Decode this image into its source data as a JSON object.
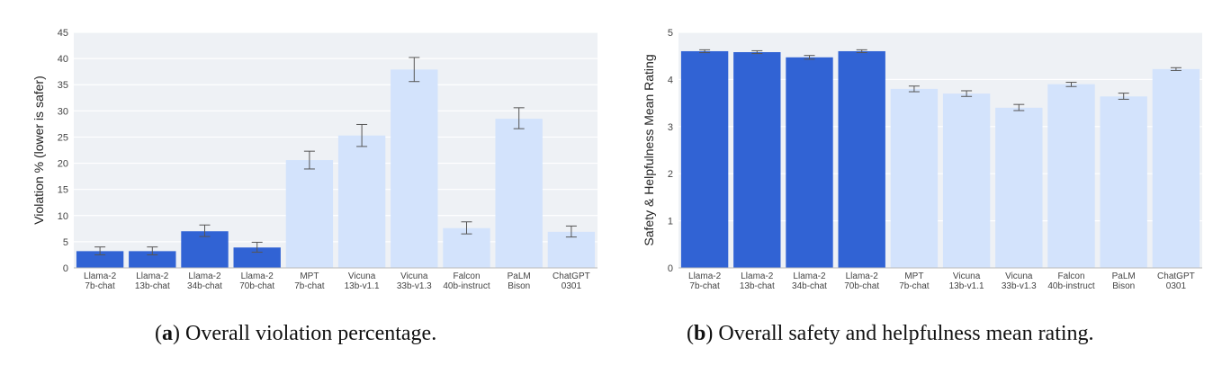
{
  "chart_data": [
    {
      "type": "bar",
      "categories": [
        "Llama-2\n7b-chat",
        "Llama-2\n13b-chat",
        "Llama-2\n34b-chat",
        "Llama-2\n70b-chat",
        "MPT\n7b-chat",
        "Vicuna\n13b-v1.1",
        "Vicuna\n33b-v1.3",
        "Falcon\n40b-instruct",
        "PaLM\nBison",
        "ChatGPT\n0301"
      ],
      "values": [
        3.2,
        3.2,
        7.0,
        3.9,
        20.6,
        25.3,
        37.9,
        7.6,
        28.5,
        6.9
      ],
      "error_low": [
        2.5,
        2.5,
        6.0,
        3.0,
        18.9,
        23.2,
        35.6,
        6.5,
        26.6,
        5.9
      ],
      "error_high": [
        4.0,
        4.0,
        8.2,
        4.9,
        22.3,
        27.4,
        40.2,
        8.8,
        30.6,
        8.0
      ],
      "highlight_count": 4,
      "xlabel": "",
      "ylabel": "Violation % (lower is safer)",
      "ylim": [
        0,
        45
      ],
      "yticks": [
        0,
        5,
        10,
        15,
        20,
        25,
        30,
        35,
        40,
        45
      ],
      "grid": true
    },
    {
      "type": "bar",
      "categories": [
        "Llama-2\n7b-chat",
        "Llama-2\n13b-chat",
        "Llama-2\n34b-chat",
        "Llama-2\n70b-chat",
        "MPT\n7b-chat",
        "Vicuna\n13b-v1.1",
        "Vicuna\n33b-v1.3",
        "Falcon\n40b-instruct",
        "PaLM\nBison",
        "ChatGPT\n0301"
      ],
      "values": [
        4.6,
        4.58,
        4.47,
        4.6,
        3.8,
        3.7,
        3.4,
        3.9,
        3.64,
        4.22
      ],
      "error_low": [
        4.57,
        4.55,
        4.43,
        4.57,
        3.74,
        3.64,
        3.34,
        3.85,
        3.58,
        4.19
      ],
      "error_high": [
        4.63,
        4.61,
        4.51,
        4.63,
        3.86,
        3.76,
        3.47,
        3.94,
        3.71,
        4.25
      ],
      "highlight_count": 4,
      "xlabel": "",
      "ylabel": "Safety & Helpfulness Mean Rating",
      "ylim": [
        0,
        5
      ],
      "yticks": [
        0,
        1,
        2,
        3,
        4,
        5
      ],
      "grid": true
    }
  ],
  "captions": [
    {
      "letter": "a",
      "text": " Overall violation percentage."
    },
    {
      "letter": "b",
      "text": " Overall safety and helpfulness mean rating."
    }
  ],
  "colors": {
    "highlight_bar": "#3163d4",
    "other_bar": "#d3e3fc",
    "plot_bg": "#eef1f5",
    "grid": "#ffffff",
    "errorbar": "#555555",
    "tick_text": "#444444"
  }
}
